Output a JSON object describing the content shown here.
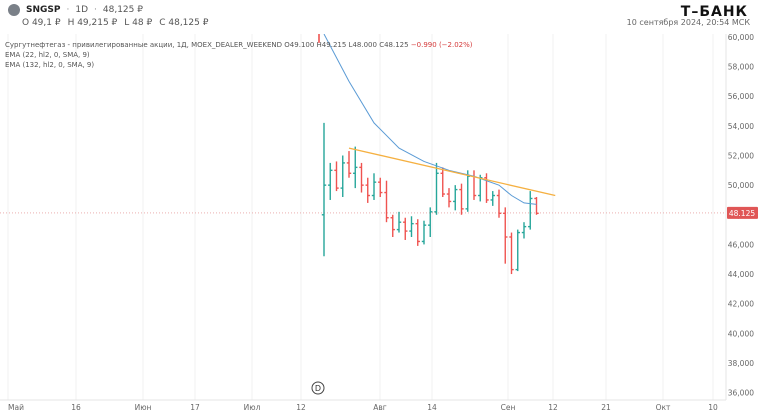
{
  "header": {
    "ticker": "SNGSP",
    "timeframe": "1D",
    "last_price": "48,125 ₽",
    "ohlc": {
      "open": "O 49,1 ₽",
      "high": "H 49,215 ₽",
      "low": "L 48 ₽",
      "close": "C 48,125 ₽"
    },
    "brand": "Т–БАНК",
    "datetime": "10 сентября 2024, 20:54 МСК"
  },
  "legend": {
    "instrument_line_prefix": "Сургутнефтегаз - привилегированные акции, 1Д, MOEX_DEALER_WEEKEND",
    "o": "O49.100",
    "h": "H49.215",
    "l": "L48.000",
    "c": "C48.125",
    "change": "−0.990 (−2.02%)",
    "ema1": "EMA (22, hl2, 0, SMA, 9)",
    "ema2": "EMA (132, hl2, 0, SMA, 9)"
  },
  "colors": {
    "up": "#26a69a",
    "down": "#ef5350",
    "ema": "#5b9bd5",
    "trendline": "#f5b041",
    "price_badge": "#e05656"
  },
  "price_axis": {
    "ticks": [
      "60,000",
      "58,000",
      "56,000",
      "54,000",
      "52,000",
      "50,000",
      "48,000",
      "46,000",
      "44,000",
      "42,000",
      "40,000",
      "38,000",
      "36,000"
    ],
    "current_price_label": "48.125"
  },
  "time_axis": {
    "labels": [
      "Май",
      "16",
      "Июн",
      "17",
      "Июл",
      "12",
      "Авг",
      "14",
      "Сен",
      "12",
      "21",
      "Окт",
      "10"
    ]
  },
  "marker": {
    "label": "D"
  },
  "chart_data": {
    "type": "candlestick",
    "y_range": [
      35.5,
      60.2
    ],
    "bars": [
      {
        "o": 48.0,
        "h": 54.2,
        "l": 45.2,
        "c": 50.0
      },
      {
        "o": 50.0,
        "h": 51.5,
        "l": 49.0,
        "c": 51.0
      },
      {
        "o": 51.0,
        "h": 51.6,
        "l": 49.6,
        "c": 49.8
      },
      {
        "o": 49.8,
        "h": 52.0,
        "l": 49.2,
        "c": 51.5
      },
      {
        "o": 51.5,
        "h": 52.3,
        "l": 50.5,
        "c": 50.8
      },
      {
        "o": 50.8,
        "h": 52.6,
        "l": 49.8,
        "c": 51.2
      },
      {
        "o": 51.2,
        "h": 51.5,
        "l": 49.5,
        "c": 50.0
      },
      {
        "o": 50.0,
        "h": 50.5,
        "l": 48.8,
        "c": 49.3
      },
      {
        "o": 49.3,
        "h": 50.8,
        "l": 49.0,
        "c": 50.2
      },
      {
        "o": 50.2,
        "h": 50.5,
        "l": 49.2,
        "c": 49.5
      },
      {
        "o": 49.5,
        "h": 50.3,
        "l": 47.5,
        "c": 47.8
      },
      {
        "o": 47.8,
        "h": 48.0,
        "l": 46.5,
        "c": 47.0
      },
      {
        "o": 47.0,
        "h": 48.2,
        "l": 46.8,
        "c": 47.5
      },
      {
        "o": 47.5,
        "h": 47.8,
        "l": 46.3,
        "c": 46.9
      },
      {
        "o": 46.9,
        "h": 47.9,
        "l": 46.5,
        "c": 47.4
      },
      {
        "o": 47.4,
        "h": 47.7,
        "l": 45.9,
        "c": 46.2
      },
      {
        "o": 46.2,
        "h": 47.6,
        "l": 46.0,
        "c": 47.3
      },
      {
        "o": 47.3,
        "h": 48.5,
        "l": 46.5,
        "c": 48.2
      },
      {
        "o": 48.2,
        "h": 51.5,
        "l": 48.0,
        "c": 50.8
      },
      {
        "o": 50.8,
        "h": 51.2,
        "l": 49.2,
        "c": 49.4
      },
      {
        "o": 49.4,
        "h": 49.8,
        "l": 48.5,
        "c": 48.9
      },
      {
        "o": 48.9,
        "h": 50.0,
        "l": 48.3,
        "c": 49.7
      },
      {
        "o": 49.7,
        "h": 50.1,
        "l": 48.0,
        "c": 48.4
      },
      {
        "o": 48.4,
        "h": 51.0,
        "l": 48.2,
        "c": 50.6
      },
      {
        "o": 50.6,
        "h": 51.0,
        "l": 49.0,
        "c": 49.3
      },
      {
        "o": 49.3,
        "h": 50.7,
        "l": 48.9,
        "c": 50.5
      },
      {
        "o": 50.5,
        "h": 50.8,
        "l": 48.8,
        "c": 49.0
      },
      {
        "o": 49.0,
        "h": 49.6,
        "l": 48.6,
        "c": 49.3
      },
      {
        "o": 49.3,
        "h": 49.7,
        "l": 47.8,
        "c": 48.1
      },
      {
        "o": 48.1,
        "h": 48.5,
        "l": 44.7,
        "c": 46.5
      },
      {
        "o": 46.5,
        "h": 46.8,
        "l": 44.0,
        "c": 44.3
      },
      {
        "o": 44.3,
        "h": 47.0,
        "l": 44.2,
        "c": 46.8
      },
      {
        "o": 46.8,
        "h": 47.5,
        "l": 46.4,
        "c": 47.2
      },
      {
        "o": 47.2,
        "h": 49.6,
        "l": 47.0,
        "c": 49.1
      },
      {
        "o": 49.1,
        "h": 49.2,
        "l": 48.0,
        "c": 48.1
      }
    ],
    "ema_points": [
      [
        0,
        62.0
      ],
      [
        4,
        57.0
      ],
      [
        8,
        54.2
      ],
      [
        12,
        52.5
      ],
      [
        16,
        51.6
      ],
      [
        20,
        51.0
      ],
      [
        24,
        50.6
      ],
      [
        28,
        50.0
      ],
      [
        30,
        49.3
      ],
      [
        32,
        48.8
      ],
      [
        34,
        48.7
      ]
    ],
    "trendline": {
      "from": [
        4,
        52.5
      ],
      "to": [
        37,
        49.3
      ]
    }
  }
}
